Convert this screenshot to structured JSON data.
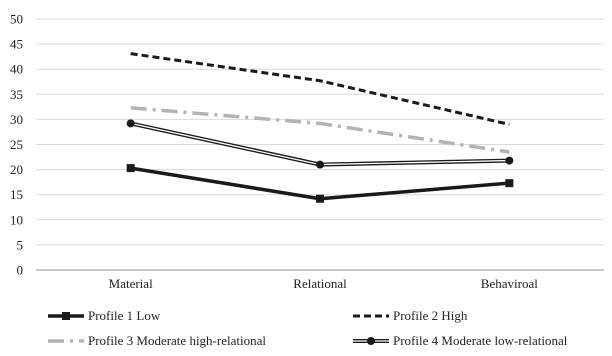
{
  "chart_data": {
    "type": "line",
    "categories": [
      "Material",
      "Relational",
      "Behaviroal"
    ],
    "ylim": [
      0,
      50
    ],
    "y_ticks": [
      "0",
      "5",
      "10",
      "15",
      "20",
      "25",
      "30",
      "35",
      "40",
      "45",
      "50"
    ],
    "grid": true,
    "legend_position": "bottom",
    "series": [
      {
        "name": "Profile 1 Low",
        "values": [
          20.3,
          14.2,
          17.3
        ],
        "color": "#1a1a1a",
        "style": "solid-thick-square"
      },
      {
        "name": "Profile 2 High",
        "values": [
          43.1,
          37.7,
          29.0
        ],
        "color": "#1a1a1a",
        "style": "dashed"
      },
      {
        "name": "Profile 3 Moderate high-relational",
        "values": [
          32.3,
          29.2,
          23.5
        ],
        "color": "#b3b3b3",
        "style": "dash-dot"
      },
      {
        "name": "Profile 4 Moderate low-relational",
        "values": [
          29.2,
          21.0,
          21.8
        ],
        "color": "#1a1a1a",
        "style": "double-circle"
      }
    ]
  }
}
